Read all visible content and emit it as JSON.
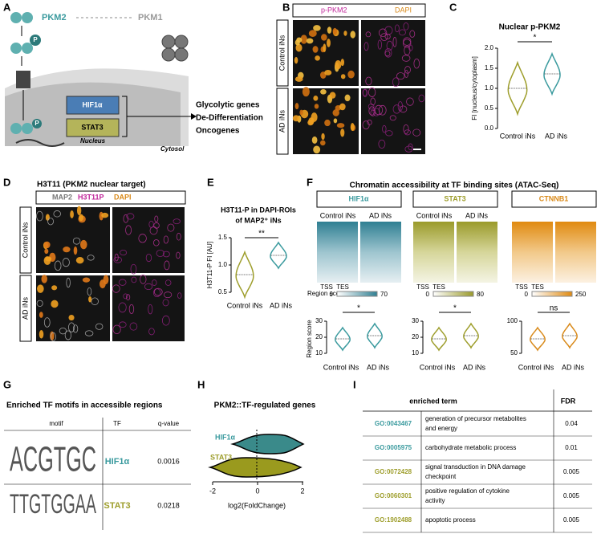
{
  "panels": {
    "A": {
      "label": "A",
      "pkm2": "PKM2",
      "pkm1": "PKM1",
      "p": "P",
      "hif": "HIF1α",
      "stat3": "STAT3",
      "nucleus": "Nucleus",
      "cytosol": "Cytosol",
      "outcomes": [
        "Glycolytic genes",
        "De-Differentiation",
        "Oncogenes"
      ]
    },
    "B": {
      "label": "B",
      "stains": [
        "p-PKM2",
        "DAPI"
      ],
      "rows": [
        "Control iNs",
        "AD iNs"
      ]
    },
    "C": {
      "label": "C",
      "title": "Nuclear p-PKM2",
      "ylabel": "FI [nucleus/cytoplasm]",
      "yticks": [
        "0.0",
        "0.5",
        "1.0",
        "1.5",
        "2.0"
      ],
      "categories": [
        "Control iNs",
        "AD iNs"
      ],
      "sig": "*"
    },
    "D": {
      "label": "D",
      "title": "H3T11 (PKM2 nuclear target)",
      "stains": [
        "MAP2",
        "H3T11P",
        "DAPI"
      ],
      "rows": [
        "Control iNs",
        "AD iNs"
      ]
    },
    "E": {
      "label": "E",
      "title": [
        "H3T11-P in DAPI-ROIs",
        "of MAP2⁺ iNs"
      ],
      "ylabel": "H3T11-P FI [AU]",
      "yticks": [
        "0.5",
        "1.0",
        "1.5"
      ],
      "categories": [
        "Control iNs",
        "AD iNs"
      ],
      "sig": "**"
    },
    "F": {
      "label": "F",
      "title": "Chromatin accessibility at TF binding sites (ATAC-Seq)",
      "region_score": "Region score:",
      "ylabel": "Region score",
      "groups": [
        {
          "tf": "HIF1α",
          "columns": [
            "Control iNs",
            "AD iNs"
          ],
          "ends": [
            "TSS",
            "TES"
          ],
          "scale": [
            "0",
            "70"
          ],
          "yticks": [
            "10",
            "20",
            "30"
          ],
          "categories": [
            "Control iNs",
            "AD iNs"
          ],
          "sig": "*"
        },
        {
          "tf": "STAT3",
          "columns": [
            "Control iNs",
            "AD iNs"
          ],
          "ends": [
            "TSS",
            "TES"
          ],
          "scale": [
            "0",
            "80"
          ],
          "yticks": [
            "10",
            "20",
            "30"
          ],
          "categories": [
            "Control iNs",
            "AD iNs"
          ],
          "sig": "*"
        },
        {
          "tf": "CTNNB1",
          "ends": [
            "TSS",
            "TES"
          ],
          "scale": [
            "0",
            "250"
          ],
          "yticks": [
            "50",
            "100"
          ],
          "categories": [
            "Control iNs",
            "AD iNs"
          ],
          "sig": "ns"
        }
      ]
    },
    "G": {
      "label": "G",
      "title": "Enriched TF motifs in accessible regions",
      "headers": [
        "motif",
        "TF",
        "q-value"
      ],
      "rows": [
        {
          "logo": "ACGTGC",
          "tf": "HIF1α",
          "q": "0.0016"
        },
        {
          "logo": "TTGTGGAA",
          "tf": "STAT3",
          "q": "0.0218"
        }
      ]
    },
    "H": {
      "label": "H",
      "title": "PKM2::TF-regulated genes",
      "series": [
        "HIF1α",
        "STAT3"
      ],
      "xticks": [
        "-2",
        "0",
        "2"
      ],
      "xlabel": "log2(FoldChange)"
    },
    "I": {
      "label": "I",
      "headers": [
        "enriched term",
        "FDR"
      ],
      "rows": [
        {
          "go": "GO:0043467",
          "term": [
            "generation of precursor metabolites",
            "and energy"
          ],
          "fdr": "0.04"
        },
        {
          "go": "GO:0005975",
          "term": [
            "carbohydrate metabolic process"
          ],
          "fdr": "0.01"
        },
        {
          "go": "GO:0072428",
          "term": [
            "signal transduction in DNA damage",
            "checkpoint"
          ],
          "fdr": "0.005"
        },
        {
          "go": "GO:0060301",
          "term": [
            "positive regulation of cytokine",
            "activity"
          ],
          "fdr": "0.005"
        },
        {
          "go": "GO:1902488",
          "term": [
            "apoptotic process"
          ],
          "fdr": "0.005"
        }
      ]
    }
  }
}
